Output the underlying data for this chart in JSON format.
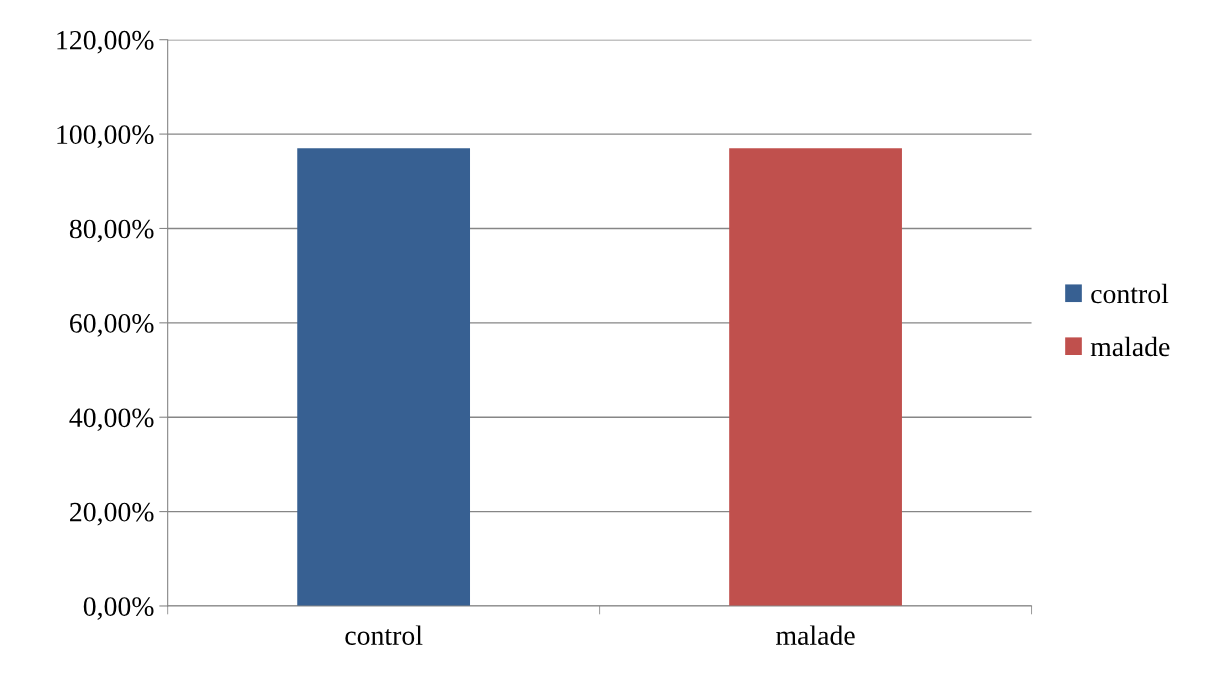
{
  "chart_data": {
    "type": "bar",
    "categories": [
      "control",
      "malade"
    ],
    "series": [
      {
        "name": "control",
        "color": "#376092",
        "values": [
          97,
          null
        ]
      },
      {
        "name": "malade",
        "color": "#c0504d",
        "values": [
          null,
          97
        ]
      }
    ],
    "ylim": [
      0,
      120
    ],
    "yticks": [
      {
        "value": 0,
        "label": "0,00%"
      },
      {
        "value": 20,
        "label": "20,00%"
      },
      {
        "value": 40,
        "label": "40,00%"
      },
      {
        "value": 60,
        "label": "60,00%"
      },
      {
        "value": 80,
        "label": "80,00%"
      },
      {
        "value": 100,
        "label": "100,00%"
      },
      {
        "value": 120,
        "label": "120,00%"
      }
    ],
    "grid": "y",
    "legend": "right"
  }
}
